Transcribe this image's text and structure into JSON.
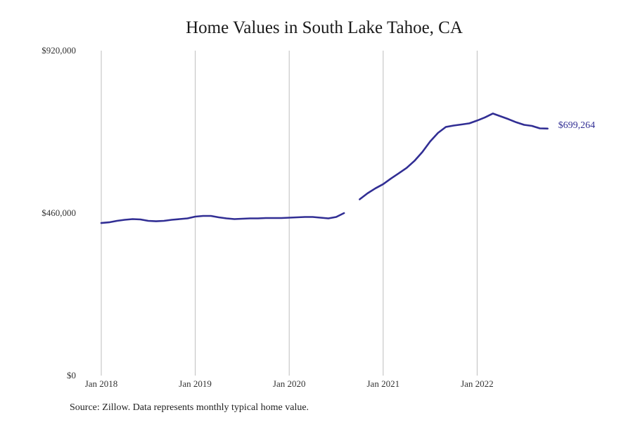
{
  "chart_data": {
    "type": "line",
    "title": "Home Values in South Lake Tahoe, CA",
    "source": "Source: Zillow. Data represents monthly typical home value.",
    "xlabel": "",
    "ylabel": "",
    "ylim": [
      0,
      920000
    ],
    "y_ticks": [
      {
        "value": 0,
        "label": "$0"
      },
      {
        "value": 460000,
        "label": "$460,000"
      },
      {
        "value": 920000,
        "label": "$920,000"
      }
    ],
    "x_ticks": [
      {
        "value": "2018-01",
        "label": "Jan 2018"
      },
      {
        "value": "2019-01",
        "label": "Jan 2019"
      },
      {
        "value": "2020-01",
        "label": "Jan 2020"
      },
      {
        "value": "2021-01",
        "label": "Jan 2021"
      },
      {
        "value": "2022-01",
        "label": "Jan 2022"
      }
    ],
    "grid": {
      "x": true,
      "y": false
    },
    "line_color": "#312e94",
    "end_label": "$699,264",
    "series": [
      {
        "segments": [
          {
            "x": [
              "2018-01",
              "2018-02",
              "2018-03",
              "2018-04",
              "2018-05",
              "2018-06",
              "2018-07",
              "2018-08",
              "2018-09",
              "2018-10",
              "2018-11",
              "2018-12",
              "2019-01",
              "2019-02",
              "2019-03",
              "2019-04",
              "2019-05",
              "2019-06",
              "2019-07",
              "2019-08",
              "2019-09",
              "2019-10",
              "2019-11",
              "2019-12",
              "2020-01",
              "2020-02",
              "2020-03",
              "2020-04",
              "2020-05",
              "2020-06",
              "2020-07",
              "2020-08"
            ],
            "y": [
              432000,
              434000,
              438000,
              441000,
              443000,
              442000,
              438000,
              437000,
              438000,
              441000,
              443000,
              445000,
              450000,
              452000,
              452000,
              448000,
              445000,
              443000,
              444000,
              445000,
              445000,
              446000,
              446000,
              446000,
              447000,
              448000,
              449000,
              449000,
              447000,
              445000,
              449000,
              460000
            ]
          },
          {
            "x": [
              "2020-10",
              "2020-11",
              "2020-12",
              "2021-01",
              "2021-02",
              "2021-03",
              "2021-04",
              "2021-05",
              "2021-06",
              "2021-07",
              "2021-08",
              "2021-09",
              "2021-10",
              "2021-11",
              "2021-12",
              "2022-01",
              "2022-02",
              "2022-03",
              "2022-04",
              "2022-05",
              "2022-06",
              "2022-07",
              "2022-08",
              "2022-09",
              "2022-10"
            ],
            "y": [
              499000,
              516000,
              530000,
              542000,
              558000,
              573000,
              588000,
              608000,
              633000,
              663000,
              687000,
              704000,
              708000,
              711000,
              714000,
              722000,
              731000,
              742000,
              734000,
              726000,
              717000,
              710000,
              707000,
              700000,
              699264
            ]
          }
        ]
      }
    ]
  }
}
